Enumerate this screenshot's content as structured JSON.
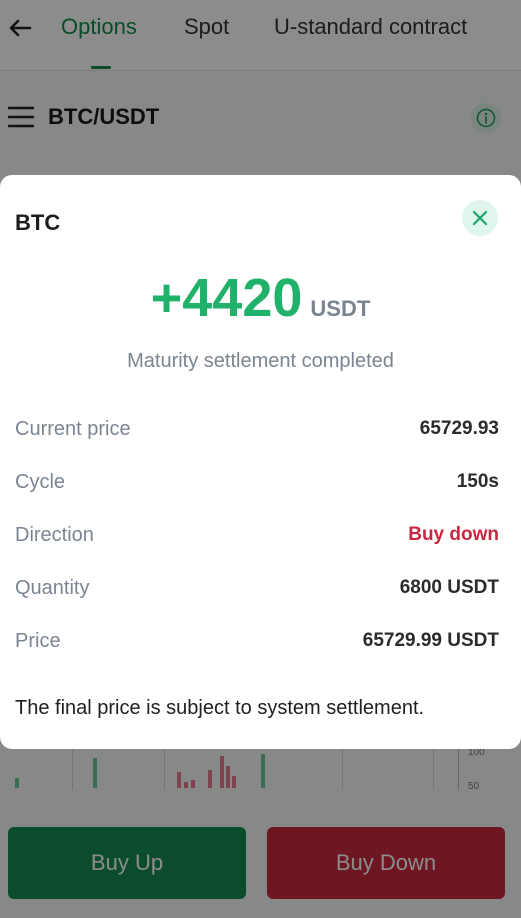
{
  "tabs": [
    {
      "label": "Options",
      "active": true
    },
    {
      "label": "Spot",
      "active": false
    },
    {
      "label": "U-standard contract",
      "active": false
    }
  ],
  "pair": "BTC/USDT",
  "chart_ticks": [
    "100",
    "50"
  ],
  "buttons": {
    "buy_up": "Buy Up",
    "buy_down": "Buy Down"
  },
  "modal": {
    "title": "BTC",
    "profit": "+4420",
    "profit_unit": "USDT",
    "status": "Maturity settlement completed",
    "rows": [
      {
        "label": "Current price",
        "value": "65729.93"
      },
      {
        "label": "Cycle",
        "value": "150s"
      },
      {
        "label": "Direction",
        "value": "Buy down"
      },
      {
        "label": "Quantity",
        "value": "6800 USDT"
      },
      {
        "label": "Price",
        "value": "65729.99 USDT"
      }
    ],
    "note": "The final price is subject to system settlement."
  },
  "colors": {
    "accent": "#0f8c4a",
    "profit": "#20b26b",
    "danger": "#c8283f"
  }
}
